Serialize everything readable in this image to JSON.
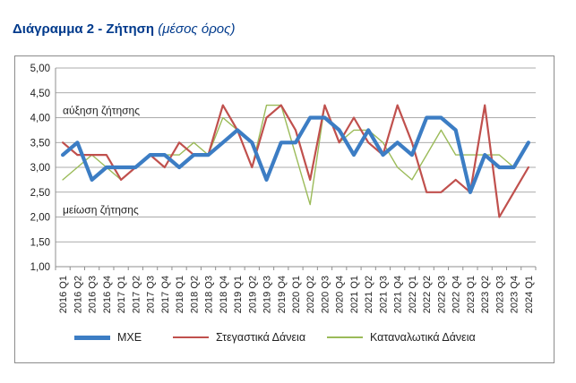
{
  "header": {
    "title_main": "Διάγραμμα 2 - Ζήτηση",
    "title_sub": "(μέσος όρος)"
  },
  "chart_data": {
    "type": "line",
    "title": "Διάγραμμα 2 - Ζήτηση (μέσος όρος)",
    "categories": [
      "2016 Q1",
      "2016 Q2",
      "2016 Q3",
      "2016 Q4",
      "2017 Q1",
      "2017 Q2",
      "2017 Q3",
      "2017 Q4",
      "2018 Q1",
      "2018 Q2",
      "2018 Q3",
      "2018 Q4",
      "2019 Q1",
      "2019 Q2",
      "2019 Q3",
      "2019 Q4",
      "2020 Q1",
      "2020 Q2",
      "2020 Q3",
      "2020 Q4",
      "2021 Q1",
      "2021 Q2",
      "2021 Q3",
      "2021 Q4",
      "2022 Q1",
      "2022 Q2",
      "2022 Q3",
      "2022 Q4",
      "2023 Q1",
      "2023 Q2",
      "2023 Q3",
      "2023 Q4",
      "2024 Q1"
    ],
    "ylim": [
      1.0,
      5.0
    ],
    "yticks": [
      "1,00",
      "1,50",
      "2,00",
      "2,50",
      "3,00",
      "3,50",
      "4,00",
      "4,50",
      "5,00"
    ],
    "grid": true,
    "legend_position": "bottom",
    "annotations": {
      "upper": "αύξηση ζήτησης",
      "lower": "μείωση ζήτησης"
    },
    "series": [
      {
        "name": "ΜΧΕ",
        "color": "#3C7DC4",
        "values": [
          3.25,
          3.5,
          2.75,
          3.0,
          3.0,
          3.0,
          3.25,
          3.25,
          3.0,
          3.25,
          3.25,
          3.5,
          3.75,
          3.5,
          2.75,
          3.5,
          3.5,
          4.0,
          4.0,
          3.75,
          3.25,
          3.75,
          3.25,
          3.5,
          3.25,
          4.0,
          4.0,
          3.75,
          2.5,
          3.25,
          3.0,
          3.0,
          3.5
        ]
      },
      {
        "name": "Στεγαστικά Δάνεια",
        "color": "#C0504D",
        "values": [
          3.5,
          3.25,
          3.25,
          3.25,
          2.75,
          3.0,
          3.25,
          3.0,
          3.5,
          3.25,
          3.25,
          4.25,
          3.75,
          3.0,
          4.0,
          4.25,
          3.75,
          2.75,
          4.25,
          3.5,
          4.0,
          3.5,
          3.25,
          4.25,
          3.5,
          2.5,
          2.5,
          2.75,
          2.5,
          4.25,
          2.0,
          2.5,
          3.0
        ]
      },
      {
        "name": "Καταναλωτικά Δάνεια",
        "color": "#9BBB59",
        "values": [
          2.75,
          3.0,
          3.25,
          3.0,
          2.75,
          3.0,
          3.25,
          3.25,
          3.25,
          3.5,
          3.25,
          4.0,
          3.75,
          3.0,
          4.25,
          4.25,
          3.25,
          2.25,
          4.25,
          3.5,
          3.75,
          3.75,
          3.5,
          3.0,
          2.75,
          3.25,
          3.75,
          3.25,
          3.25,
          3.25,
          3.25,
          3.0,
          3.5
        ]
      }
    ]
  }
}
